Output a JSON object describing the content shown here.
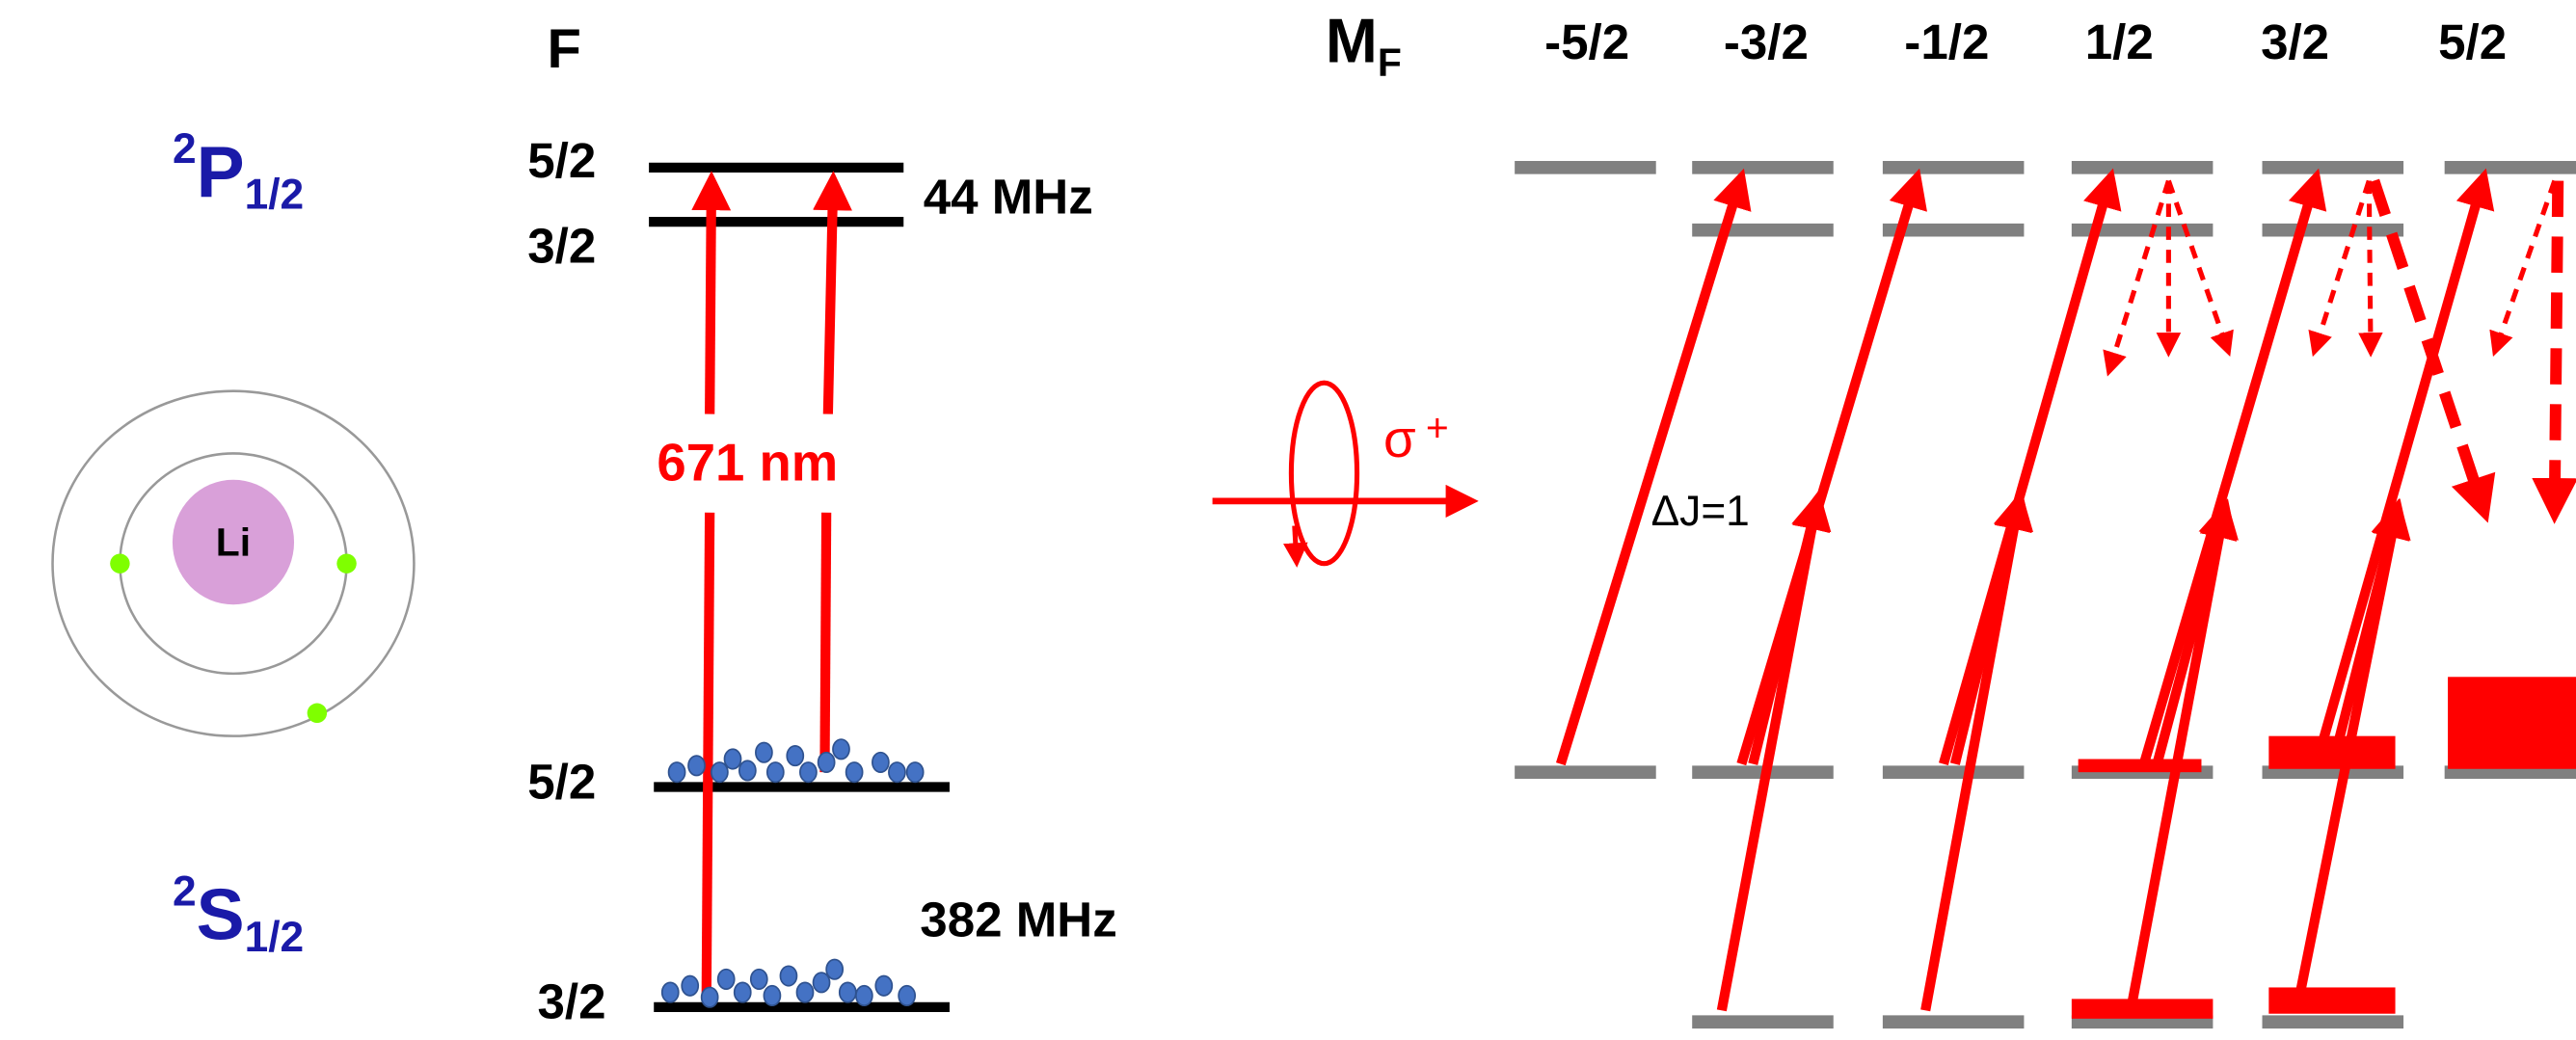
{
  "atom": {
    "label": "Li"
  },
  "terms": [
    {
      "sup": "2",
      "letter": "P",
      "sub": "1/2"
    },
    {
      "sup": "2",
      "letter": "S",
      "sub": "1/2"
    }
  ],
  "f_column": {
    "title": "F",
    "excited_levels": [
      "5/2",
      "3/2"
    ],
    "excited_splitting": "44 MHz",
    "laser": "671 nm",
    "ground_levels": [
      "5/2",
      "3/2"
    ],
    "ground_splitting": "382 MHz"
  },
  "mf_column": {
    "title": {
      "letter": "M",
      "sub": "F"
    },
    "values": [
      "-5/2",
      "-3/2",
      "-1/2",
      "1/2",
      "3/2",
      "5/2"
    ]
  },
  "polarization": {
    "symbol": "σ",
    "sup": "+"
  },
  "transition_label": "ΔJ=1"
}
